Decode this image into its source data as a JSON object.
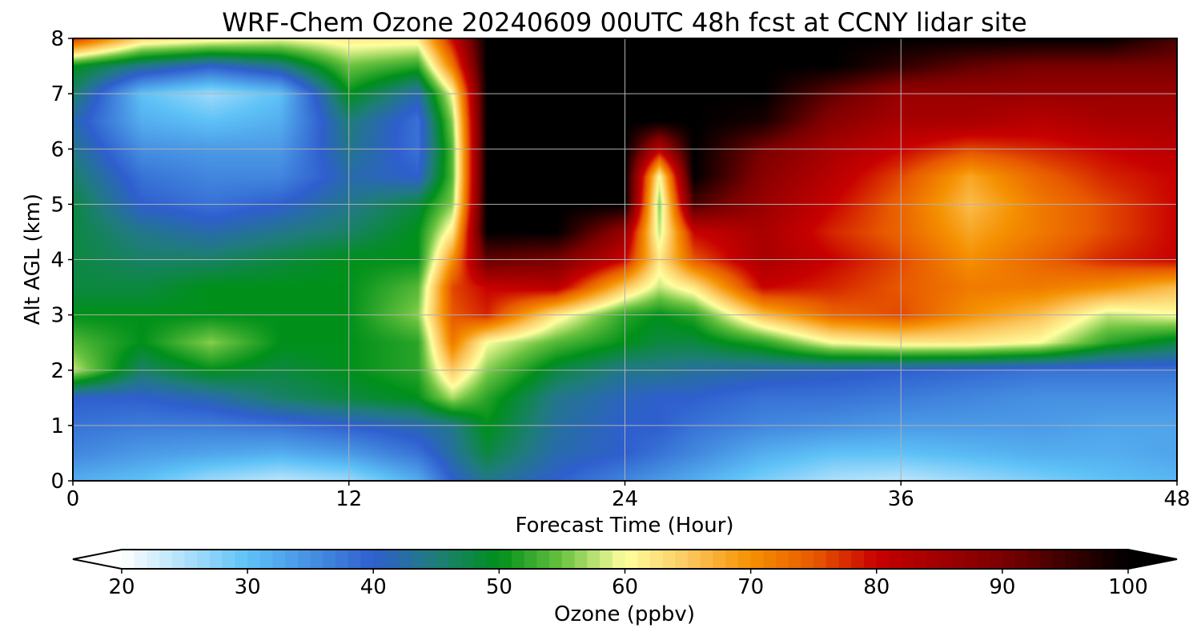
{
  "chart_data": {
    "type": "heatmap",
    "title": "WRF-Chem Ozone  20240609 00UTC 48h fcst at CCNY lidar site",
    "xlabel": "Forecast Time (Hour)",
    "ylabel": "Alt AGL (km)",
    "xlim": [
      0,
      48
    ],
    "ylim": [
      0,
      8
    ],
    "xticks": [
      0,
      12,
      24,
      36,
      48
    ],
    "yticks": [
      0,
      1,
      2,
      3,
      4,
      5,
      6,
      7,
      8
    ],
    "grid": true,
    "colorbar": {
      "label": "Ozone  (ppbv)",
      "range": [
        20,
        100
      ],
      "ticks": [
        20,
        30,
        40,
        50,
        60,
        70,
        80,
        90,
        100
      ],
      "extend": "both",
      "colors": [
        {
          "v": 20,
          "c": "#ffffff"
        },
        {
          "v": 30,
          "c": "#5ec2f7"
        },
        {
          "v": 40,
          "c": "#2f5fce"
        },
        {
          "v": 45,
          "c": "#1f7d7a"
        },
        {
          "v": 50,
          "c": "#00901a"
        },
        {
          "v": 55,
          "c": "#6ac240"
        },
        {
          "v": 60,
          "c": "#ffffa0"
        },
        {
          "v": 65,
          "c": "#fcc860"
        },
        {
          "v": 70,
          "c": "#f59000"
        },
        {
          "v": 75,
          "c": "#e85a00"
        },
        {
          "v": 80,
          "c": "#c80000"
        },
        {
          "v": 90,
          "c": "#7a0000"
        },
        {
          "v": 100,
          "c": "#000000"
        }
      ]
    },
    "x": [
      0,
      3,
      6,
      9,
      12,
      15,
      16.5,
      18,
      21,
      24,
      25.5,
      27,
      30,
      33,
      36,
      39,
      42,
      45,
      48
    ],
    "y": [
      0,
      0.5,
      1,
      1.5,
      2,
      2.5,
      3,
      3.5,
      4,
      4.5,
      5,
      5.5,
      6,
      6.5,
      7,
      7.5,
      8
    ],
    "z": [
      [
        32,
        30,
        26,
        24,
        26,
        32,
        40,
        44,
        40,
        36,
        34,
        32,
        28,
        25,
        24,
        26,
        28,
        30,
        31
      ],
      [
        36,
        34,
        33,
        32,
        34,
        38,
        43,
        48,
        42,
        40,
        38,
        36,
        32,
        30,
        30,
        31,
        32,
        32,
        33
      ],
      [
        38,
        37,
        37,
        38,
        40,
        42,
        44,
        50,
        43,
        40,
        40,
        38,
        36,
        35,
        34,
        34,
        34,
        33,
        33
      ],
      [
        40,
        40,
        42,
        46,
        48,
        50,
        57,
        52,
        44,
        41,
        40,
        40,
        38,
        38,
        37,
        36,
        35,
        35,
        35
      ],
      [
        58,
        46,
        50,
        48,
        50,
        52,
        65,
        56,
        48,
        44,
        44,
        43,
        42,
        41,
        40,
        39,
        38,
        38,
        38
      ],
      [
        54,
        50,
        56,
        50,
        50,
        52,
        72,
        60,
        54,
        50,
        48,
        48,
        52,
        60,
        62,
        62,
        60,
        52,
        48
      ],
      [
        50,
        50,
        50,
        50,
        50,
        56,
        75,
        78,
        62,
        52,
        50,
        52,
        66,
        74,
        76,
        70,
        66,
        58,
        60
      ],
      [
        48,
        48,
        50,
        50,
        50,
        54,
        76,
        80,
        82,
        65,
        58,
        62,
        80,
        78,
        75,
        72,
        72,
        70,
        66
      ],
      [
        48,
        46,
        46,
        48,
        50,
        50,
        70,
        92,
        90,
        80,
        62,
        75,
        84,
        80,
        76,
        70,
        74,
        78,
        80
      ],
      [
        48,
        44,
        42,
        44,
        46,
        50,
        62,
        100,
        100,
        86,
        58,
        80,
        84,
        78,
        74,
        68,
        72,
        76,
        80
      ],
      [
        48,
        40,
        38,
        40,
        44,
        48,
        56,
        100,
        100,
        100,
        56,
        94,
        86,
        80,
        74,
        66,
        72,
        76,
        80
      ],
      [
        46,
        38,
        36,
        36,
        42,
        40,
        54,
        100,
        100,
        100,
        60,
        100,
        88,
        82,
        76,
        68,
        74,
        78,
        80
      ],
      [
        44,
        35,
        34,
        34,
        44,
        38,
        54,
        100,
        100,
        100,
        82,
        100,
        90,
        84,
        80,
        76,
        78,
        80,
        82
      ],
      [
        42,
        32,
        30,
        32,
        45,
        38,
        56,
        100,
        100,
        100,
        100,
        100,
        98,
        88,
        84,
        84,
        82,
        84,
        84
      ],
      [
        46,
        30,
        26,
        30,
        50,
        42,
        60,
        100,
        100,
        100,
        100,
        100,
        100,
        92,
        86,
        86,
        86,
        86,
        86
      ],
      [
        50,
        44,
        40,
        44,
        55,
        52,
        72,
        100,
        100,
        100,
        100,
        100,
        100,
        100,
        96,
        92,
        90,
        90,
        90
      ],
      [
        78,
        64,
        62,
        60,
        62,
        62,
        80,
        100,
        100,
        100,
        100,
        100,
        100,
        100,
        100,
        100,
        100,
        100,
        94
      ]
    ]
  }
}
